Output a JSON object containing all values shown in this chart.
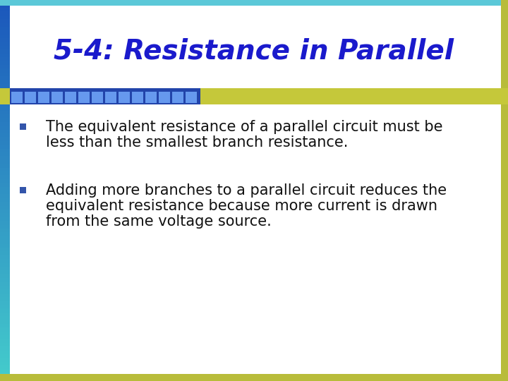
{
  "title": "5-4: Resistance in Parallel",
  "title_color": "#1a1acc",
  "title_fontsize": 28,
  "bullet1_line1": "The equivalent resistance of a parallel circuit must be",
  "bullet1_line2": "less than the smallest branch resistance.",
  "bullet2_line1": "Adding more branches to a parallel circuit reduces the",
  "bullet2_line2": "equivalent resistance because more current is drawn",
  "bullet2_line3": "from the same voltage source.",
  "bullet_marker_color": "#3355aa",
  "bullet_fontsize": 15,
  "bg_color": "#ffffff",
  "border_top_color": "#5bc8d8",
  "border_bottom_color": "#b8bc3a",
  "border_left_top": "#2255bb",
  "border_left_bottom": "#44cccc",
  "header_bar_olive": "#c5c83a",
  "checker_light": "#6699ee",
  "checker_dark": "#2244aa",
  "text_color": "#111111"
}
